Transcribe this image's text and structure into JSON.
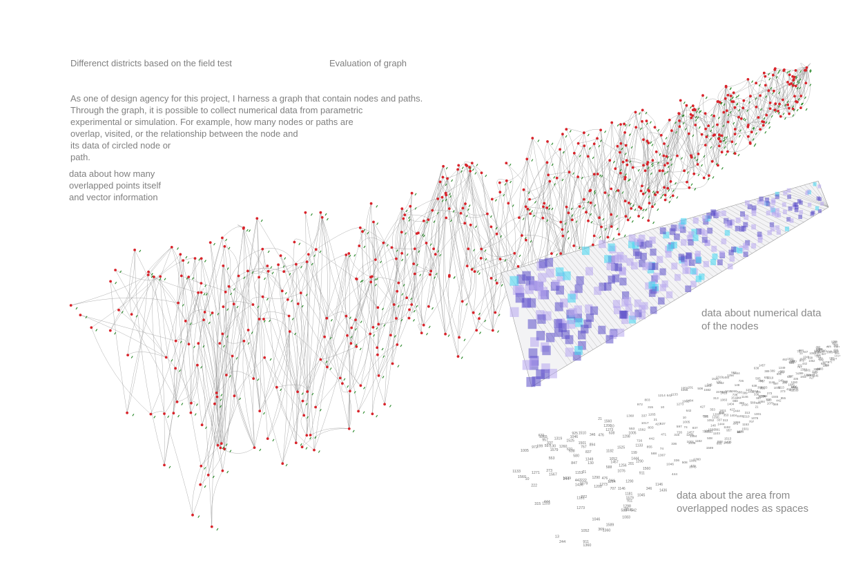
{
  "texts": {
    "heading_districts": "Differenct districts based on the field test",
    "heading_evaluation": "Evaluation of graph",
    "description": "As one of design agency for this project, I harness a graph that contain nodes and paths.\nThrough the graph, it is possible to collect numerical data from parametric\nexperimental or simulation. For example, how many nodes or paths are\noverlap, visited, or the relationship between the node and\nits data of circled node or\npath.",
    "caption_overlap": "data about how many\noverlapped points itself\nand vector information",
    "caption_numerical": "data about numerical data\nof the nodes",
    "caption_area": "data about the area from\noverlapped  nodes as spaces"
  },
  "colors": {
    "node": "#d9232a",
    "vector": "#2e8b2e",
    "path": "#9a9a9a",
    "mesh_dark": "#5b4fc8",
    "mesh_light": "#b7a6ef",
    "mesh_highlight": "#3fd6f0",
    "numbers": "#6f6f6f"
  },
  "node_labels": [
    "1436",
    "222",
    "201",
    "471",
    "1513",
    "1319",
    "1146",
    "462",
    "1273",
    "148",
    "642",
    "588",
    "597",
    "10",
    "1079",
    "1133",
    "313",
    "13",
    "244",
    "1457",
    "1260",
    "1052",
    "505",
    "837",
    "315",
    "369",
    "130",
    "1045",
    "588",
    "444",
    "1103",
    "1484",
    "1214",
    "199",
    "427",
    "1404",
    "21",
    "1182",
    "855",
    "1444",
    "925",
    "767",
    "580",
    "1290",
    "389",
    "1059",
    "847",
    "1360",
    "553",
    "911",
    "1046",
    "1560",
    "707",
    "957",
    "1005",
    "638",
    "1811",
    "336",
    "1200",
    "74",
    "631",
    "353",
    "442",
    "508",
    "346",
    "894",
    "286",
    "1017",
    "1582",
    "1146",
    "1416",
    "1298",
    "1001",
    "1265",
    "1510",
    "1076",
    "972",
    "337",
    "736",
    "1181",
    "888",
    "476",
    "1579",
    "891",
    "1039",
    "1153",
    "726",
    "1367",
    "1271",
    "803",
    "1256",
    "273",
    "1525",
    "1083",
    "1062",
    "1589",
    "1567",
    "1349",
    "1501"
  ]
}
